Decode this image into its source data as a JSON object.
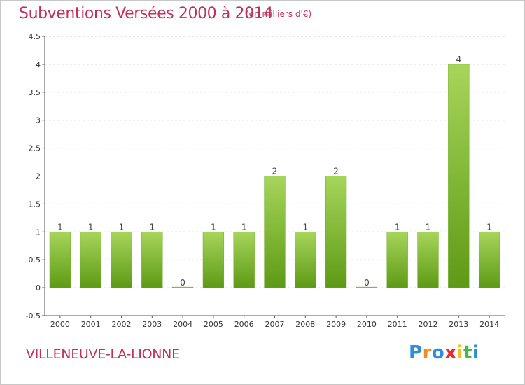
{
  "header": {
    "title": "Subventions Versées 2000 à 2014",
    "unit_note": "(en milliers d'€)"
  },
  "footer": {
    "place": "VILLENEUVE-LA-LIONNE",
    "logo_letters": [
      "P",
      "r",
      "o",
      "x",
      "i",
      "t",
      "i"
    ],
    "logo_colors": [
      "#2f8fd6",
      "#f28c1e",
      "#2f8fd6",
      "#e8282a",
      "#f2c21e",
      "#4ab548",
      "#2f8fd6"
    ]
  },
  "colors": {
    "bar_light": "#a6d55a",
    "bar_dark": "#5e9a16",
    "title": "#c0305a",
    "grid": "#d0d0d0"
  },
  "chart_data": {
    "type": "bar",
    "title": "Subventions Versées 2000 à 2014",
    "subtitle": "(en milliers d'€)",
    "xlabel": "",
    "ylabel": "",
    "categories": [
      "2000",
      "2001",
      "2002",
      "2003",
      "2004",
      "2005",
      "2006",
      "2007",
      "2008",
      "2009",
      "2010",
      "2011",
      "2012",
      "2013",
      "2014"
    ],
    "values": [
      1,
      1,
      1,
      1,
      0,
      1,
      1,
      2,
      1,
      2,
      0,
      1,
      1,
      4,
      1
    ],
    "data_labels": [
      "1",
      "1",
      "1",
      "1",
      "0",
      "1",
      "1",
      "2",
      "1",
      "2",
      "0",
      "1",
      "1",
      "4",
      "1"
    ],
    "ylim": [
      -0.5,
      4.5
    ],
    "yticks": [
      -0.5,
      0,
      0.5,
      1,
      1.5,
      2,
      2.5,
      3,
      3.5,
      4,
      4.5
    ],
    "ytick_labels": [
      "-0.5",
      "0",
      "0.5",
      "1",
      "1.5",
      "2",
      "2.5",
      "3",
      "3.5",
      "4",
      "4.5"
    ],
    "grid": "horizontal dashed",
    "legend": "none"
  }
}
